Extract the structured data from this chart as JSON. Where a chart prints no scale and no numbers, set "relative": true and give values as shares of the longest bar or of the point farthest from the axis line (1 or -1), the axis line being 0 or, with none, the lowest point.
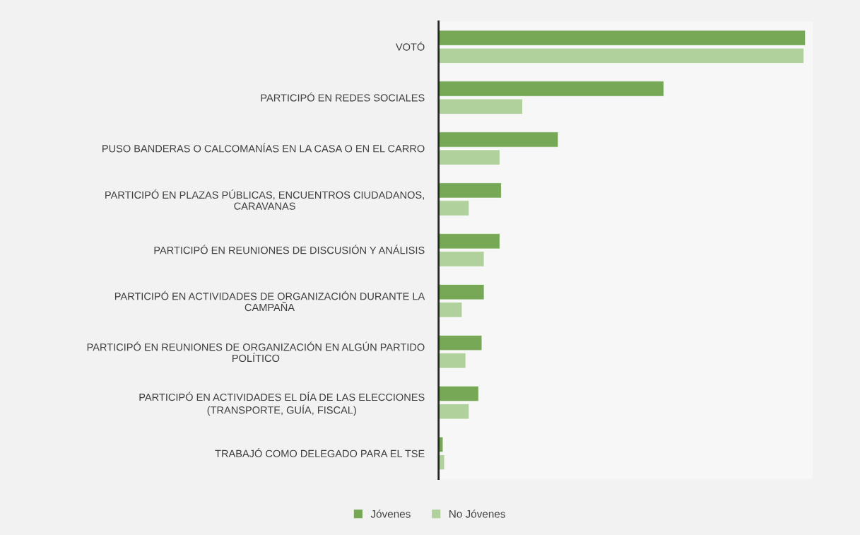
{
  "chart_data": {
    "type": "bar",
    "orientation": "horizontal",
    "relative": true,
    "legend": "bottom",
    "grid": false,
    "categories": [
      "VOTÓ",
      "PARTICIPÓ EN REDES SOCIALES",
      "PUSO BANDERAS O CALCOMANÍAS EN LA CASA O EN EL CARRO",
      "PARTICIPÓ EN PLAZAS PÚBLICAS, ENCUENTROS CIUDADANOS, CARAVANAS",
      "PARTICIPÓ EN REUNIONES DE DISCUSIÓN Y ANÁLISIS",
      "PARTICIPÓ EN ACTIVIDADES DE ORGANIZACIÓN DURANTE LA CAMPAÑA",
      "PARTICIPÓ EN REUNIONES DE ORGANIZACIÓN EN ALGÚN PARTIDO POLÍTICO",
      "PARTICIPÓ EN ACTIVIDADES EL DÍA DE LAS ELECCIONES (TRANSPORTE, GUÍA, FISCAL)",
      "TRABAJÓ COMO DELEGADO PARA EL TSE"
    ],
    "series": [
      {
        "name": "Jóvenes",
        "color": "#76a856",
        "values": [
          1,
          0.614,
          0.326,
          0.171,
          0.167,
          0.124,
          0.118,
          0.109,
          0.012
        ]
      },
      {
        "name": "No Jóvenes",
        "color": "#b0d09c",
        "values": [
          0.996,
          0.229,
          0.167,
          0.083,
          0.124,
          0.064,
          0.074,
          0.083,
          0.016
        ]
      }
    ]
  }
}
